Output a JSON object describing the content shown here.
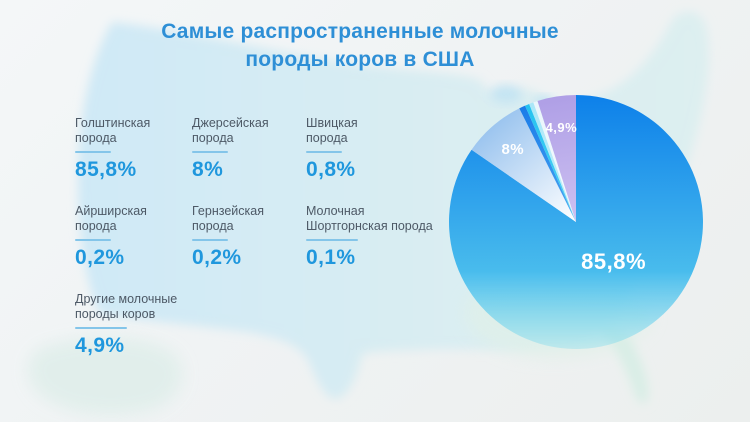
{
  "title": "Самые распространенные молочные породы коров в США",
  "palette": {
    "title_color": "#2e8fd6",
    "stat_value_color": "#1f97dd",
    "stat_label_color": "#4d5966",
    "underline_color": "#84c5e9",
    "pie_label_color": "#ffffff",
    "background_color": "#f0f3f4",
    "map_fill_west": "#cfe9f6",
    "map_fill_east": "#ddeff0",
    "map_fill_south": "#dfeee9"
  },
  "stats": [
    {
      "label": "Голштинская порода",
      "value": "85,8%"
    },
    {
      "label": "Джерсейская порода",
      "value": "8%"
    },
    {
      "label": "Швицкая порода",
      "value": "0,8%"
    },
    {
      "label": "Айрширская порода",
      "value": "0,2%"
    },
    {
      "label": "Гернзейская порода",
      "value": "0,2%"
    },
    {
      "label": "Молочная Шортгорнская порода",
      "value": "0,1%"
    },
    {
      "label": "Другие молочные породы коров",
      "value": "4,9%"
    }
  ],
  "chart_data": {
    "type": "pie",
    "title": "Самые распространенные молочные породы коров в США",
    "unit": "%",
    "direction": "clockwise",
    "start_angle_deg": 0,
    "legend_position": "none",
    "categories": [
      "Голштинская порода",
      "Джерсейская порода",
      "Швицкая порода",
      "Айрширская порода",
      "Гернзейская порода",
      "Молочная Шортгорнская порода",
      "Другие молочные породы коров"
    ],
    "values": [
      85.8,
      8,
      0.8,
      0.2,
      0.2,
      0.1,
      4.9
    ],
    "slice_colors": [
      [
        "#0d80ea",
        "#63d6ee"
      ],
      [
        "#9cc5ef",
        "#ffffff"
      ],
      [
        "#1b7ce8",
        "#4aa6f2"
      ],
      [
        "#25c2f0",
        "#50d2f5"
      ],
      [
        "#a9e7f8",
        "#c6f0fb"
      ],
      [
        "#e9f6fc",
        "#f7fbfe"
      ],
      [
        "#af9fe6",
        "#cdc1f1"
      ]
    ],
    "slice_labels": [
      {
        "slice_index": 0,
        "text": "85,8%"
      },
      {
        "slice_index": 1,
        "text": "8%"
      },
      {
        "slice_index": 6,
        "text": "4,9%"
      }
    ]
  }
}
